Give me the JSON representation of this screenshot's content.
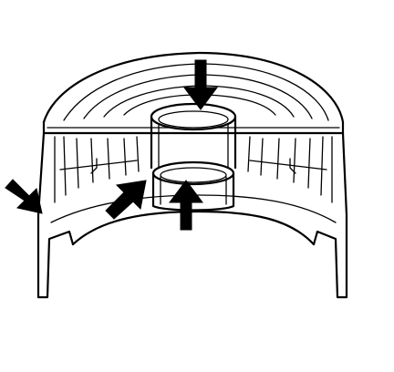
{
  "diagram": {
    "line_color": "#000000",
    "background": "#ffffff",
    "parts": [
      {
        "id": "outer-housing"
      },
      {
        "id": "inner-cup"
      },
      {
        "id": "ribbed-frame"
      }
    ],
    "callouts": [
      {
        "id": "arrow-top",
        "direction": "down",
        "points_to": "inner-cup-top-rim"
      },
      {
        "id": "arrow-bottom",
        "direction": "up",
        "points_to": "inner-cup-bottom"
      },
      {
        "id": "arrow-left",
        "direction": "down-right",
        "points_to": "outer-housing-wall"
      },
      {
        "id": "arrow-center-left",
        "direction": "up-right",
        "points_to": "inner-cup-wall"
      }
    ]
  }
}
